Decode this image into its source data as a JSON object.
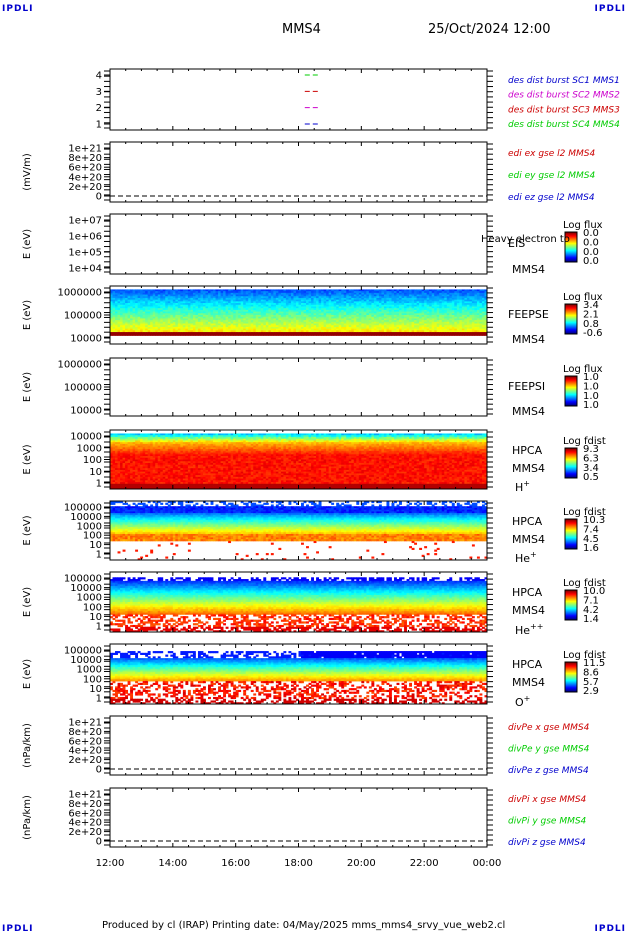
{
  "header": {
    "corner_tl": "IPDLI",
    "corner_tr": "IPDLI",
    "corner_bl": "IPDLI",
    "corner_br": "IPDLI",
    "spacecraft": "MMS4",
    "datetime": "25/Oct/2024 12:00"
  },
  "footer": {
    "produced": "Produced by cl (IRAP)   Printing date: 04/May/2025   mms_mms4_srvy_vue_web2.cl"
  },
  "colors": {
    "mms1": "#0000cc",
    "mms2": "#cc00cc",
    "mms3": "#cc0000",
    "mms4": "#00cc00",
    "x": "#cc0000",
    "y": "#00cc00",
    "z": "#0000cc"
  },
  "chart_data": {
    "type": "spectrogram-stack",
    "x_axis": {
      "ticks": [
        "12:00",
        "14:00",
        "16:00",
        "18:00",
        "20:00",
        "22:00",
        "00:00"
      ]
    },
    "panels": [
      {
        "id": "burst",
        "yticks": [
          "4",
          "3",
          "2",
          "1"
        ],
        "legend": [
          "des dist burst SC1 MMS1",
          "des dist burst SC2 MMS2",
          "des dist burst SC3 MMS3",
          "des dist burst SC4 MMS4"
        ],
        "legend_colors": [
          "#0000cc",
          "#cc00cc",
          "#cc0000",
          "#00cc00"
        ]
      },
      {
        "id": "edi",
        "ylabel": "(mV/m)",
        "yticks": [
          "1e+21",
          "8e+20",
          "6e+20",
          "4e+20",
          "2e+20",
          "0"
        ],
        "legend": [
          "edi ex gse l2 MMS4",
          "edi ey gse l2 MMS4",
          "edi ez gse l2 MMS4"
        ],
        "legend_colors": [
          "#cc0000",
          "#00cc00",
          "#0000cc"
        ]
      },
      {
        "id": "eis",
        "ylabel": "E (eV)",
        "yticks": [
          "1e+07",
          "1e+06",
          "1e+05",
          "1e+04"
        ],
        "instrument": "EIS",
        "overlay": "Heavy electron to",
        "sc": "MMS4",
        "cbar_title": "Log flux",
        "cbar_ticks": [
          "0.0",
          "0.0",
          "0.0",
          "0.0"
        ]
      },
      {
        "id": "feeps_e",
        "ylabel": "E (eV)",
        "yticks": [
          "1000000",
          "100000",
          "10000"
        ],
        "instrument": "FEEPSE",
        "sc": "MMS4",
        "cbar_title": "Log flux",
        "cbar_ticks": [
          "3.4",
          "2.1",
          "0.8",
          "-0.6"
        ]
      },
      {
        "id": "feeps_i",
        "ylabel": "E (eV)",
        "yticks": [
          "1000000",
          "100000",
          "10000"
        ],
        "instrument": "FEEPSI",
        "sc": "MMS4",
        "cbar_title": "Log flux",
        "cbar_ticks": [
          "1.0",
          "1.0",
          "1.0",
          "1.0"
        ]
      },
      {
        "id": "hpca_h",
        "ylabel": "E (eV)",
        "yticks": [
          "10000",
          "1000",
          "100",
          "10",
          "1"
        ],
        "instrument": "HPCA",
        "sc": "MMS4",
        "species": "H",
        "charge": "+",
        "cbar_title": "Log fdist",
        "cbar_ticks": [
          "9.3",
          "6.3",
          "3.4",
          "0.5"
        ]
      },
      {
        "id": "hpca_he",
        "ylabel": "E (eV)",
        "yticks": [
          "100000",
          "10000",
          "1000",
          "100",
          "10",
          "1"
        ],
        "instrument": "HPCA",
        "sc": "MMS4",
        "species": "He",
        "charge": "+",
        "cbar_title": "Log fdist",
        "cbar_ticks": [
          "10.3",
          "7.4",
          "4.5",
          "1.6"
        ]
      },
      {
        "id": "hpca_he2",
        "ylabel": "E (eV)",
        "yticks": [
          "100000",
          "10000",
          "1000",
          "100",
          "10",
          "1"
        ],
        "instrument": "HPCA",
        "sc": "MMS4",
        "species": "He",
        "charge": "++",
        "cbar_title": "Log fdist",
        "cbar_ticks": [
          "10.0",
          "7.1",
          "4.2",
          "1.4"
        ]
      },
      {
        "id": "hpca_o",
        "ylabel": "E (eV)",
        "yticks": [
          "100000",
          "10000",
          "1000",
          "100",
          "10",
          "1"
        ],
        "instrument": "HPCA",
        "sc": "MMS4",
        "species": "O",
        "charge": "+",
        "cbar_title": "Log fdist",
        "cbar_ticks": [
          "11.5",
          "8.6",
          "5.7",
          "2.9"
        ]
      },
      {
        "id": "divpe",
        "ylabel": "(nPa/km)",
        "yticks": [
          "1e+21",
          "8e+20",
          "6e+20",
          "4e+20",
          "2e+20",
          "0"
        ],
        "legend": [
          "divPe x gse MMS4",
          "divPe y gse MMS4",
          "divPe z gse MMS4"
        ],
        "legend_colors": [
          "#cc0000",
          "#00cc00",
          "#0000cc"
        ]
      },
      {
        "id": "divpi",
        "ylabel": "(nPa/km)",
        "yticks": [
          "1e+21",
          "8e+20",
          "6e+20",
          "4e+20",
          "2e+20",
          "0"
        ],
        "legend": [
          "divPi x gse MMS4",
          "divPi y gse MMS4",
          "divPi z gse MMS4"
        ],
        "legend_colors": [
          "#cc0000",
          "#00cc00",
          "#0000cc"
        ]
      }
    ]
  }
}
